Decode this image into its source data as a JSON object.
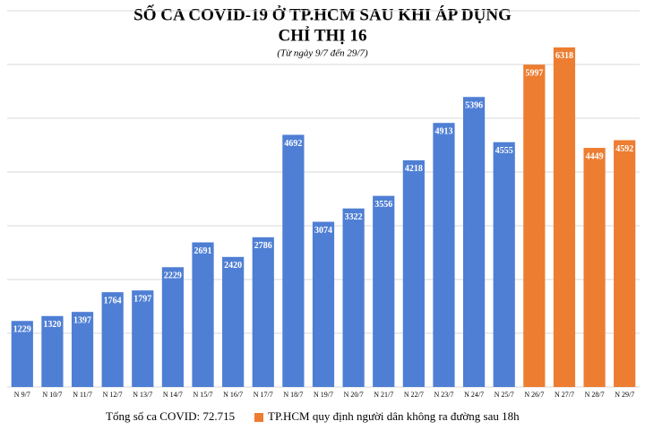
{
  "chart_data": {
    "type": "bar",
    "title": [
      "SỐ CA COVID-19 Ở TP.HCM SAU KHI ÁP DỤNG",
      "CHỈ THỊ 16"
    ],
    "subtitle": "(Từ ngày 9/7 đến 29/7)",
    "categories": [
      "N 9/7",
      "N 10/7",
      "N 11/7",
      "N 12/7",
      "N 13/7",
      "N 14/7",
      "N 15/7",
      "N 16/7",
      "N 17/7",
      "N 18/7",
      "N 19/7",
      "N 20/7",
      "N 21/7",
      "N 22/7",
      "N 23/7",
      "N 24/7",
      "N 25/7",
      "N 26/7",
      "N 27/7",
      "N 28/7",
      "N 29/7"
    ],
    "values": [
      1229,
      1320,
      1397,
      1764,
      1797,
      2229,
      2691,
      2420,
      2786,
      4692,
      3074,
      3322,
      3556,
      4218,
      4913,
      5396,
      4555,
      5997,
      6318,
      4449,
      4592
    ],
    "colors": [
      "#4f7fd4",
      "#4f7fd4",
      "#4f7fd4",
      "#4f7fd4",
      "#4f7fd4",
      "#4f7fd4",
      "#4f7fd4",
      "#4f7fd4",
      "#4f7fd4",
      "#4f7fd4",
      "#4f7fd4",
      "#4f7fd4",
      "#4f7fd4",
      "#4f7fd4",
      "#4f7fd4",
      "#4f7fd4",
      "#4f7fd4",
      "#ed7d31",
      "#ed7d31",
      "#ed7d31",
      "#ed7d31"
    ],
    "ylim": [
      0,
      7000
    ],
    "yticks": [
      0,
      1000,
      2000,
      3000,
      4000,
      5000,
      6000,
      7000
    ],
    "grid": true,
    "annotation": "Tổng số ca COVID: 72.715",
    "legend": {
      "label": "TP.HCM quy định người dân không ra đường sau 18h",
      "color": "#ed7d31"
    }
  }
}
